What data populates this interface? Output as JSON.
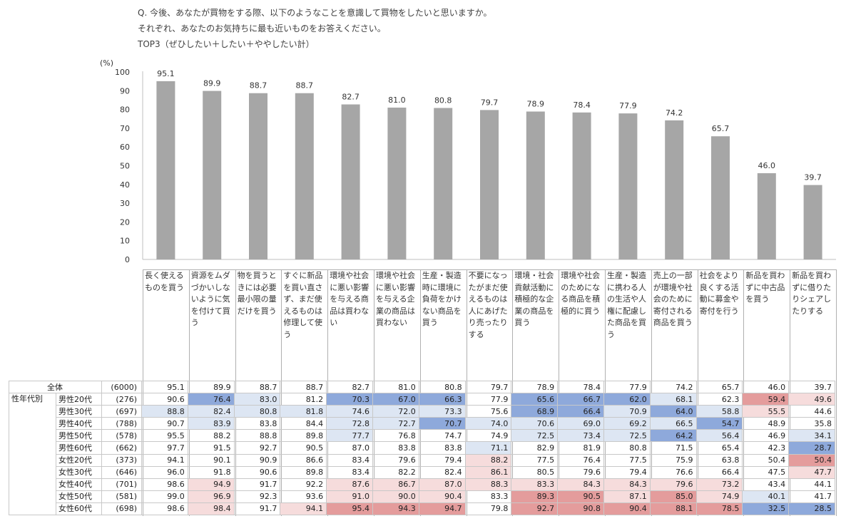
{
  "question": {
    "line1": "Q. 今後、あなたが買物をする際、以下のようなことを意識して買物をしたいと思いますか。",
    "line2": "それぞれ、あなたのお気持ちに最も近いものをお答えください。",
    "line3": "TOP3（ぜひしたい＋したい＋ややしたい計）"
  },
  "chart_data": {
    "type": "bar",
    "ylabel": "(%)",
    "ylim": [
      0,
      100
    ],
    "yticks": [
      0,
      10,
      20,
      30,
      40,
      50,
      60,
      70,
      80,
      90,
      100
    ],
    "bar_color": "#a6a6a6",
    "categories": [
      "長く使えるものを買う",
      "資源をムダづかいしないように気を付けて買う",
      "物を買うときには必要最小限の量だけを買う",
      "すぐに新品を買い直さず、まだ使えるものは修理して使う",
      "環境や社会に悪い影響を与える商品は買わない",
      "環境や社会に悪い影響を与える企業の商品は買わない",
      "生産・製造時に環境に負荷をかけない商品を買う",
      "不要になったがまだ使えるものは人にあげたり売ったりする",
      "環境・社会貢献活動に積極的な企業の商品を買う",
      "環境や社会のためになる商品を積極的に買う",
      "生産・製造に携わる人の生活や人権に配慮した商品を買う",
      "売上の一部が環境や社会のために寄付される商品を買う",
      "社会をより良くする活動に募金や寄付を行う",
      "新品を買わずに中古品を買う",
      "新品を買わずに借りたりシェアしたりする"
    ],
    "values": [
      95.1,
      89.9,
      88.7,
      88.7,
      82.7,
      81.0,
      80.8,
      79.7,
      78.9,
      78.4,
      77.9,
      74.2,
      65.7,
      46.0,
      39.7
    ],
    "value_labels": [
      "95.1",
      "89.9",
      "88.7",
      "88.7",
      "82.7",
      "81.0",
      "80.8",
      "79.7",
      "78.9",
      "78.4",
      "77.9",
      "74.2",
      "65.7",
      "46.0",
      "39.7"
    ]
  },
  "table": {
    "section_label": "性年代別",
    "highlight_colors": {
      "dark_blue": "#8ea9db",
      "light_blue": "#dde6f3",
      "dark_red": "#e49c9c",
      "light_red": "#f6dcdc"
    },
    "rows": [
      {
        "label": "全体",
        "n": "(6000)",
        "values": [
          "95.1",
          "89.9",
          "88.7",
          "88.7",
          "82.7",
          "81.0",
          "80.8",
          "79.7",
          "78.9",
          "78.4",
          "77.9",
          "74.2",
          "65.7",
          "46.0",
          "39.7"
        ],
        "shades": [
          "",
          "",
          "",
          "",
          "",
          "",
          "",
          "",
          "",
          "",
          "",
          "",
          "",
          "",
          ""
        ]
      },
      {
        "label": "男性20代",
        "n": "(276)",
        "values": [
          "90.6",
          "76.4",
          "83.0",
          "81.2",
          "70.3",
          "67.0",
          "66.3",
          "77.9",
          "65.6",
          "66.7",
          "62.0",
          "68.1",
          "62.3",
          "59.4",
          "49.6"
        ],
        "shades": [
          "",
          "db",
          "lb",
          "",
          "db",
          "db",
          "db",
          "",
          "db",
          "db",
          "db",
          "lb",
          "",
          "dr",
          "lr"
        ]
      },
      {
        "label": "男性30代",
        "n": "(697)",
        "values": [
          "88.8",
          "82.4",
          "80.8",
          "81.8",
          "74.6",
          "72.0",
          "73.3",
          "75.6",
          "68.9",
          "66.4",
          "70.9",
          "64.0",
          "58.8",
          "55.5",
          "44.6"
        ],
        "shades": [
          "lb",
          "lb",
          "lb",
          "lb",
          "lb",
          "lb",
          "lb",
          "",
          "db",
          "db",
          "lb",
          "db",
          "lb",
          "lr",
          ""
        ]
      },
      {
        "label": "男性40代",
        "n": "(788)",
        "values": [
          "90.7",
          "83.9",
          "83.8",
          "84.4",
          "72.8",
          "72.7",
          "70.7",
          "74.0",
          "70.6",
          "69.0",
          "69.2",
          "66.5",
          "54.7",
          "48.9",
          "35.8"
        ],
        "shades": [
          "",
          "lb",
          "",
          "",
          "lb",
          "lb",
          "db",
          "lb",
          "lb",
          "lb",
          "lb",
          "lb",
          "db",
          "",
          ""
        ]
      },
      {
        "label": "男性50代",
        "n": "(578)",
        "values": [
          "95.5",
          "88.2",
          "88.8",
          "89.8",
          "77.7",
          "76.8",
          "74.7",
          "74.9",
          "72.5",
          "73.4",
          "72.5",
          "64.2",
          "56.4",
          "46.9",
          "34.1"
        ],
        "shades": [
          "",
          "",
          "",
          "",
          "lb",
          "",
          "",
          "",
          "lb",
          "lb",
          "lb",
          "db",
          "lb",
          "",
          "lb"
        ]
      },
      {
        "label": "男性60代",
        "n": "(662)",
        "values": [
          "97.7",
          "91.5",
          "92.7",
          "90.5",
          "87.0",
          "83.8",
          "83.8",
          "71.1",
          "82.9",
          "81.9",
          "80.8",
          "71.5",
          "65.4",
          "42.3",
          "28.7"
        ],
        "shades": [
          "",
          "",
          "",
          "",
          "",
          "",
          "",
          "lb",
          "",
          "",
          "",
          "",
          "",
          "",
          "db"
        ]
      },
      {
        "label": "女性20代",
        "n": "(373)",
        "values": [
          "94.1",
          "90.1",
          "90.9",
          "86.6",
          "83.4",
          "79.6",
          "79.4",
          "88.2",
          "77.5",
          "76.4",
          "77.5",
          "75.9",
          "63.8",
          "50.4",
          "50.4"
        ],
        "shades": [
          "",
          "",
          "",
          "",
          "",
          "",
          "",
          "lr",
          "",
          "",
          "",
          "",
          "",
          "",
          "dr"
        ]
      },
      {
        "label": "女性30代",
        "n": "(646)",
        "values": [
          "96.0",
          "91.8",
          "90.6",
          "89.8",
          "83.4",
          "82.2",
          "82.4",
          "86.1",
          "80.5",
          "79.6",
          "79.4",
          "76.6",
          "66.4",
          "47.5",
          "47.7"
        ],
        "shades": [
          "",
          "",
          "",
          "",
          "",
          "",
          "",
          "lr",
          "",
          "",
          "",
          "",
          "",
          "",
          "lr"
        ]
      },
      {
        "label": "女性40代",
        "n": "(701)",
        "values": [
          "98.6",
          "94.9",
          "91.7",
          "92.2",
          "87.6",
          "86.7",
          "87.0",
          "88.3",
          "83.3",
          "84.3",
          "84.3",
          "79.6",
          "73.2",
          "43.4",
          "44.1"
        ],
        "shades": [
          "",
          "lr",
          "",
          "",
          "lr",
          "lr",
          "lr",
          "lr",
          "lr",
          "lr",
          "lr",
          "lr",
          "lr",
          "",
          ""
        ]
      },
      {
        "label": "女性50代",
        "n": "(581)",
        "values": [
          "99.0",
          "96.9",
          "92.3",
          "93.6",
          "91.0",
          "90.0",
          "90.4",
          "83.3",
          "89.3",
          "90.5",
          "87.1",
          "85.0",
          "74.9",
          "40.1",
          "41.7"
        ],
        "shades": [
          "",
          "lr",
          "",
          "",
          "lr",
          "lr",
          "lr",
          "",
          "dr",
          "dr",
          "lr",
          "dr",
          "lr",
          "lb",
          ""
        ]
      },
      {
        "label": "女性60代",
        "n": "(698)",
        "values": [
          "98.6",
          "98.4",
          "91.7",
          "94.1",
          "95.4",
          "94.3",
          "94.7",
          "79.8",
          "92.7",
          "90.8",
          "90.4",
          "88.1",
          "78.5",
          "32.5",
          "28.5"
        ],
        "shades": [
          "",
          "lr",
          "",
          "lr",
          "dr",
          "dr",
          "dr",
          "",
          "dr",
          "dr",
          "dr",
          "dr",
          "dr",
          "db",
          "db"
        ]
      }
    ]
  }
}
